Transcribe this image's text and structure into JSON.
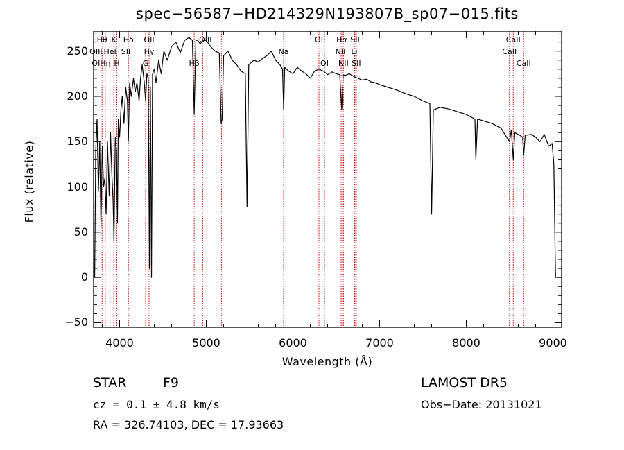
{
  "chart_data": {
    "type": "line",
    "title": "spec−56587−HD214329N193807B_sp07−015.fits",
    "xlabel": "Wavelength (Å)",
    "ylabel": "Flux (relative)",
    "xlim": [
      3700,
      9100
    ],
    "ylim": [
      -55,
      272
    ],
    "xticks": [
      4000,
      5000,
      6000,
      7000,
      8000,
      9000
    ],
    "yticks": [
      -50,
      0,
      50,
      100,
      150,
      200,
      250
    ],
    "grid": false,
    "series": [
      {
        "color": "#000000",
        "points": [
          [
            3700,
            5
          ],
          [
            3712,
            0
          ],
          [
            3725,
            140
          ],
          [
            3740,
            175
          ],
          [
            3755,
            95
          ],
          [
            3770,
            150
          ],
          [
            3785,
            55
          ],
          [
            3800,
            145
          ],
          [
            3815,
            100
          ],
          [
            3830,
            110
          ],
          [
            3845,
            70
          ],
          [
            3860,
            150
          ],
          [
            3880,
            90
          ],
          [
            3895,
            160
          ],
          [
            3910,
            115
          ],
          [
            3925,
            85
          ],
          [
            3935,
            40
          ],
          [
            3950,
            155
          ],
          [
            3965,
            140
          ],
          [
            3975,
            60
          ],
          [
            3985,
            175
          ],
          [
            4000,
            155
          ],
          [
            4015,
            185
          ],
          [
            4030,
            200
          ],
          [
            4050,
            170
          ],
          [
            4070,
            210
          ],
          [
            4090,
            195
          ],
          [
            4101,
            150
          ],
          [
            4115,
            215
          ],
          [
            4135,
            200
          ],
          [
            4160,
            220
          ],
          [
            4180,
            205
          ],
          [
            4200,
            215
          ],
          [
            4225,
            195
          ],
          [
            4240,
            218
          ],
          [
            4260,
            235
          ],
          [
            4285,
            215
          ],
          [
            4300,
            195
          ],
          [
            4315,
            225
          ],
          [
            4330,
            220
          ],
          [
            4345,
            10
          ],
          [
            4355,
            210
          ],
          [
            4368,
            0
          ],
          [
            4380,
            225
          ],
          [
            4400,
            230
          ],
          [
            4420,
            215
          ],
          [
            4450,
            240
          ],
          [
            4480,
            225
          ],
          [
            4510,
            250
          ],
          [
            4550,
            240
          ],
          [
            4600,
            255
          ],
          [
            4650,
            260
          ],
          [
            4700,
            248
          ],
          [
            4750,
            262
          ],
          [
            4800,
            265
          ],
          [
            4840,
            262
          ],
          [
            4861,
            180
          ],
          [
            4880,
            262
          ],
          [
            4900,
            262
          ],
          [
            4930,
            258
          ],
          [
            4960,
            262
          ],
          [
            5000,
            262
          ],
          [
            5050,
            255
          ],
          [
            5100,
            250
          ],
          [
            5150,
            248
          ],
          [
            5172,
            170
          ],
          [
            5183,
            175
          ],
          [
            5200,
            245
          ],
          [
            5250,
            250
          ],
          [
            5300,
            240
          ],
          [
            5350,
            235
          ],
          [
            5400,
            228
          ],
          [
            5450,
            225
          ],
          [
            5470,
            78
          ],
          [
            5490,
            235
          ],
          [
            5550,
            240
          ],
          [
            5600,
            238
          ],
          [
            5650,
            242
          ],
          [
            5700,
            245
          ],
          [
            5750,
            250
          ],
          [
            5800,
            240
          ],
          [
            5850,
            235
          ],
          [
            5880,
            230
          ],
          [
            5893,
            185
          ],
          [
            5905,
            232
          ],
          [
            5950,
            228
          ],
          [
            6000,
            225
          ],
          [
            6050,
            232
          ],
          [
            6100,
            228
          ],
          [
            6150,
            225
          ],
          [
            6200,
            220
          ],
          [
            6250,
            228
          ],
          [
            6300,
            230
          ],
          [
            6350,
            228
          ],
          [
            6400,
            224
          ],
          [
            6450,
            227
          ],
          [
            6500,
            225
          ],
          [
            6540,
            224
          ],
          [
            6563,
            185
          ],
          [
            6580,
            224
          ],
          [
            6600,
            223
          ],
          [
            6650,
            225
          ],
          [
            6700,
            222
          ],
          [
            6750,
            220
          ],
          [
            6800,
            218
          ],
          [
            6850,
            219
          ],
          [
            6900,
            216
          ],
          [
            6950,
            215
          ],
          [
            7000,
            213
          ],
          [
            7100,
            210
          ],
          [
            7200,
            207
          ],
          [
            7300,
            203
          ],
          [
            7400,
            200
          ],
          [
            7500,
            195
          ],
          [
            7580,
            192
          ],
          [
            7600,
            70
          ],
          [
            7620,
            185
          ],
          [
            7700,
            188
          ],
          [
            7800,
            186
          ],
          [
            7900,
            183
          ],
          [
            8000,
            180
          ],
          [
            8100,
            175
          ],
          [
            8110,
            130
          ],
          [
            8130,
            175
          ],
          [
            8200,
            173
          ],
          [
            8300,
            170
          ],
          [
            8400,
            165
          ],
          [
            8498,
            150
          ],
          [
            8520,
            163
          ],
          [
            8542,
            130
          ],
          [
            8560,
            160
          ],
          [
            8600,
            158
          ],
          [
            8650,
            155
          ],
          [
            8662,
            135
          ],
          [
            8680,
            157
          ],
          [
            8750,
            158
          ],
          [
            8800,
            155
          ],
          [
            8850,
            150
          ],
          [
            8900,
            158
          ],
          [
            8950,
            145
          ],
          [
            8990,
            148
          ],
          [
            9010,
            125
          ],
          [
            9025,
            30
          ],
          [
            9030,
            0
          ]
        ]
      }
    ],
    "lines": {
      "color": "#cc0000",
      "wavelengths": [
        3727,
        3798,
        3835,
        3889,
        3933,
        3968,
        4102,
        4300,
        4340,
        4861,
        4959,
        5007,
        5175,
        5892,
        6300,
        6364,
        6548,
        6563,
        6583,
        6708,
        6716,
        6731,
        8498,
        8542,
        8662
      ],
      "labels": [
        {
          "text": "Hθ",
          "wl": 3797,
          "row": 1
        },
        {
          "text": "K",
          "wl": 3933,
          "row": 1
        },
        {
          "text": "Hδ",
          "wl": 4102,
          "row": 1
        },
        {
          "text": "OII",
          "wl": 4340,
          "row": 1
        },
        {
          "text": "OIII",
          "wl": 4990,
          "row": 1
        },
        {
          "text": "OI",
          "wl": 6300,
          "row": 1
        },
        {
          "text": "Hα",
          "wl": 6563,
          "row": 1
        },
        {
          "text": "SII",
          "wl": 6716,
          "row": 1
        },
        {
          "text": "CaII",
          "wl": 8542,
          "row": 1
        },
        {
          "text": "OIII",
          "wl": 3727,
          "row": 2
        },
        {
          "text": "HeI",
          "wl": 3889,
          "row": 2
        },
        {
          "text": "SII",
          "wl": 4072,
          "row": 2
        },
        {
          "text": "Hγ",
          "wl": 4340,
          "row": 2
        },
        {
          "text": "Na",
          "wl": 5892,
          "row": 2
        },
        {
          "text": "NII",
          "wl": 6548,
          "row": 2
        },
        {
          "text": "Li",
          "wl": 6708,
          "row": 2
        },
        {
          "text": "CaII",
          "wl": 8498,
          "row": 2
        },
        {
          "text": "OI",
          "wl": 3727,
          "row": 3
        },
        {
          "text": "Hη",
          "wl": 3835,
          "row": 3
        },
        {
          "text": "H",
          "wl": 3968,
          "row": 3
        },
        {
          "text": "G",
          "wl": 4300,
          "row": 3
        },
        {
          "text": "Hβ",
          "wl": 4861,
          "row": 3
        },
        {
          "text": "OI",
          "wl": 6364,
          "row": 3
        },
        {
          "text": "NII",
          "wl": 6583,
          "row": 3
        },
        {
          "text": "SII",
          "wl": 6731,
          "row": 3
        },
        {
          "text": "CaII",
          "wl": 8662,
          "row": 3
        }
      ]
    }
  },
  "info": {
    "class_label": "STAR",
    "subclass": "F9",
    "survey": "LAMOST DR5",
    "cz": "cz = 0.1 ± 4.8 km/s",
    "obs_date": "Obs−Date: 20131021",
    "coords": "RA = 326.74103, DEC =  17.93663"
  }
}
